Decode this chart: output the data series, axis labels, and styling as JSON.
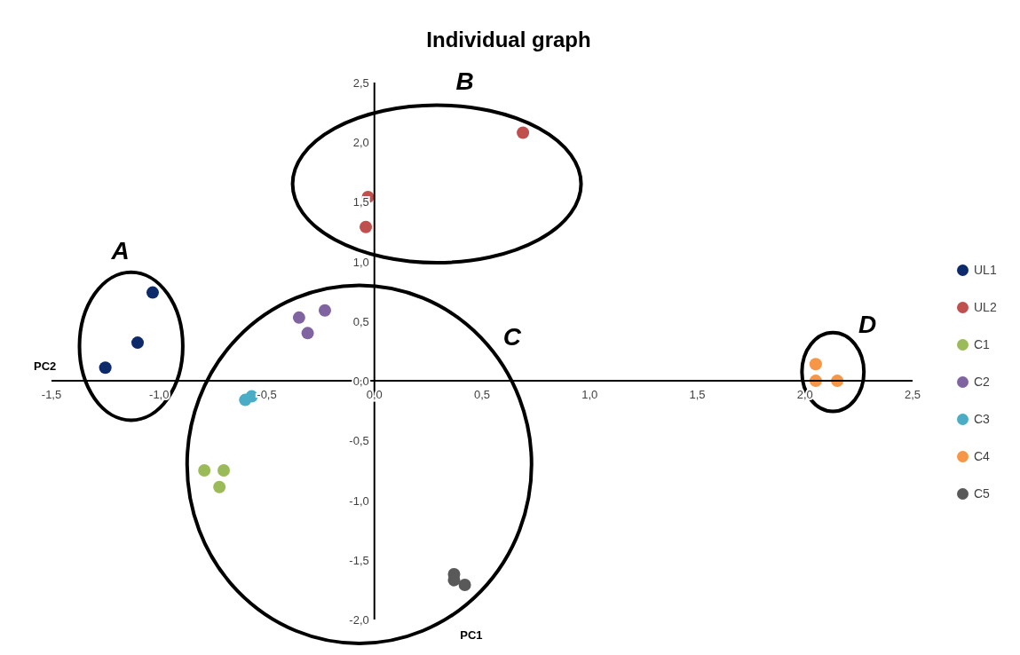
{
  "chart_data": {
    "type": "scatter",
    "title": "Individual graph",
    "xlabel": "PC1",
    "ylabel": "PC2",
    "xlim": [
      -1.5,
      2.5
    ],
    "ylim": [
      -2,
      2.5
    ],
    "xticks": [
      {
        "value": -1.5,
        "label": "-1,5"
      },
      {
        "value": -1,
        "label": "-1,0"
      },
      {
        "value": -0.5,
        "label": "-0,5"
      },
      {
        "value": 0,
        "label": "0,0"
      },
      {
        "value": 0.5,
        "label": "0,5"
      },
      {
        "value": 1,
        "label": "1,0"
      },
      {
        "value": 1.5,
        "label": "1,5"
      },
      {
        "value": 2,
        "label": "2,0"
      },
      {
        "value": 2.5,
        "label": "2,5"
      }
    ],
    "yticks": [
      {
        "value": -2,
        "label": "-2,0"
      },
      {
        "value": -1.5,
        "label": "-1,5"
      },
      {
        "value": -1,
        "label": "-1,0"
      },
      {
        "value": -0.5,
        "label": "-0,5"
      },
      {
        "value": 0,
        "label": "0,0"
      },
      {
        "value": 0.5,
        "label": "0,5"
      },
      {
        "value": 1,
        "label": "1,0"
      },
      {
        "value": 1.5,
        "label": "1,5"
      },
      {
        "value": 2,
        "label": "2,0"
      },
      {
        "value": 2.5,
        "label": "2,5"
      }
    ],
    "series": [
      {
        "name": "UL1",
        "color": "#0d2a6b",
        "x": [
          -1.03,
          -1.1,
          -1.25
        ],
        "values": [
          0.74,
          0.32,
          0.11
        ]
      },
      {
        "name": "UL2",
        "color": "#c0504d",
        "x": [
          0.69,
          -0.03,
          -0.04
        ],
        "values": [
          2.08,
          1.54,
          1.29
        ]
      },
      {
        "name": "C1",
        "color": "#9bbb59",
        "x": [
          -0.79,
          -0.7,
          -0.72
        ],
        "values": [
          -0.75,
          -0.75,
          -0.89
        ]
      },
      {
        "name": "C2",
        "color": "#8064a2",
        "x": [
          -0.35,
          -0.23,
          -0.31
        ],
        "values": [
          0.53,
          0.59,
          0.4
        ]
      },
      {
        "name": "C3",
        "color": "#4bacc6",
        "x": [
          -0.6,
          -0.57
        ],
        "values": [
          -0.16,
          -0.13
        ]
      },
      {
        "name": "C4",
        "color": "#f79646",
        "x": [
          2.05,
          2.05,
          2.15
        ],
        "values": [
          0.14,
          0,
          0
        ]
      },
      {
        "name": "C5",
        "color": "#595959",
        "x": [
          0.37,
          0.37,
          0.42
        ],
        "values": [
          -1.62,
          -1.67,
          -1.71
        ]
      }
    ],
    "annotations": [
      "A",
      "B",
      "C",
      "D"
    ],
    "marker": "circle",
    "legend": "right",
    "grid": false
  }
}
